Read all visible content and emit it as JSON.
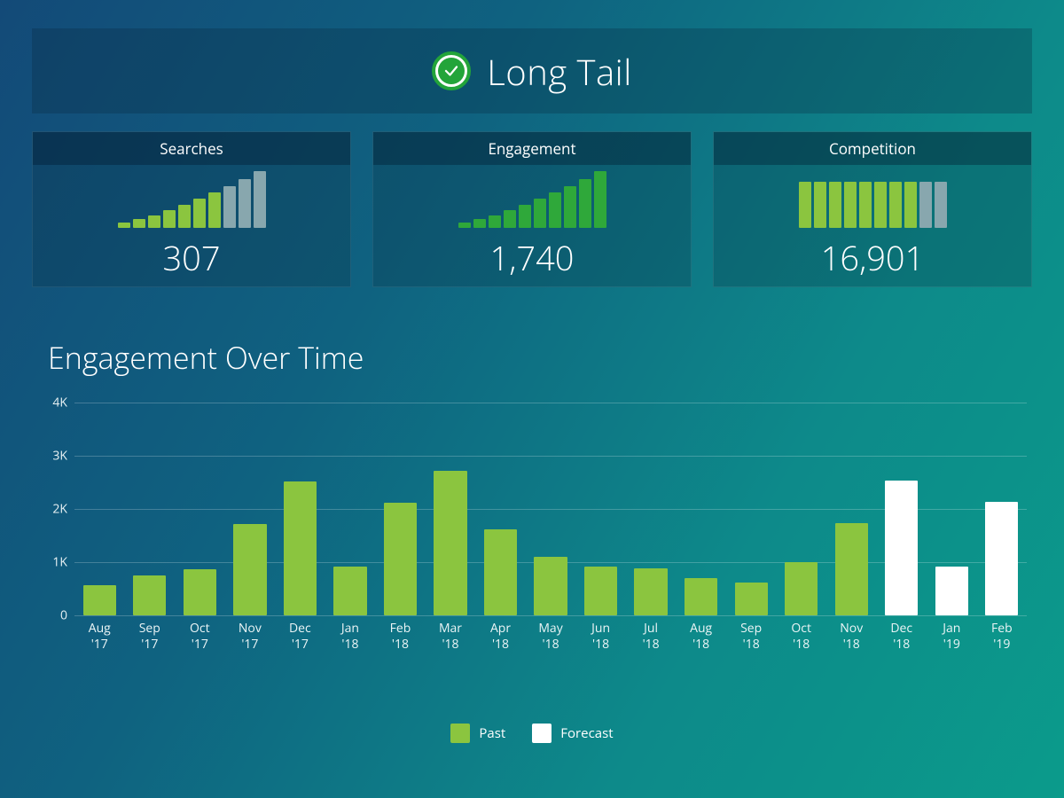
{
  "header": {
    "title": "Long Tail",
    "icon_ring_color": "#23a43a",
    "icon_background": "#ffffff",
    "icon_check_fill": "#23a43a",
    "icon_check_stroke": "#ffffff"
  },
  "cards": {
    "searches": {
      "title": "Searches",
      "value": "307",
      "bars": {
        "heights": [
          6,
          10,
          14,
          20,
          26,
          33,
          40,
          47,
          55,
          64
        ],
        "colors": [
          "#8bc53f",
          "#8bc53f",
          "#8bc53f",
          "#8bc53f",
          "#8bc53f",
          "#8bc53f",
          "#8bc53f",
          "#88a7ae",
          "#88a7ae",
          "#88a7ae"
        ]
      }
    },
    "engagement": {
      "title": "Engagement",
      "value": "1,740",
      "bars": {
        "heights": [
          6,
          10,
          14,
          20,
          26,
          33,
          40,
          47,
          55,
          64
        ],
        "colors": [
          "#2fa83a",
          "#2fa83a",
          "#2fa83a",
          "#2fa83a",
          "#2fa83a",
          "#2fa83a",
          "#2fa83a",
          "#2fa83a",
          "#2fa83a",
          "#2fa83a"
        ]
      }
    },
    "competition": {
      "title": "Competition",
      "value": "16,901",
      "bars": {
        "heights": [
          52,
          52,
          52,
          52,
          52,
          52,
          52,
          52,
          52,
          52
        ],
        "colors": [
          "#8bc53f",
          "#8bc53f",
          "#8bc53f",
          "#8bc53f",
          "#8bc53f",
          "#8bc53f",
          "#8bc53f",
          "#8bc53f",
          "#88a7ae",
          "#88a7ae"
        ]
      }
    }
  },
  "chart": {
    "title": "Engagement Over Time",
    "type": "bar",
    "ylim": [
      0,
      4000
    ],
    "yticks": [
      {
        "v": 0,
        "label": "0"
      },
      {
        "v": 1000,
        "label": "1K"
      },
      {
        "v": 2000,
        "label": "2K"
      },
      {
        "v": 3000,
        "label": "3K"
      },
      {
        "v": 4000,
        "label": "4K"
      }
    ],
    "grid_color": "rgba(255,255,255,0.22)",
    "past_color": "#8bc53f",
    "forecast_color": "#ffffff",
    "bars": [
      {
        "label_a": "Aug",
        "label_b": "'17",
        "value": 560,
        "kind": "past"
      },
      {
        "label_a": "Sep",
        "label_b": "'17",
        "value": 750,
        "kind": "past"
      },
      {
        "label_a": "Oct",
        "label_b": "'17",
        "value": 860,
        "kind": "past"
      },
      {
        "label_a": "Nov",
        "label_b": "'17",
        "value": 1720,
        "kind": "past"
      },
      {
        "label_a": "Dec",
        "label_b": "'17",
        "value": 2520,
        "kind": "past"
      },
      {
        "label_a": "Jan",
        "label_b": "'18",
        "value": 920,
        "kind": "past"
      },
      {
        "label_a": "Feb",
        "label_b": "'18",
        "value": 2120,
        "kind": "past"
      },
      {
        "label_a": "Mar",
        "label_b": "'18",
        "value": 2720,
        "kind": "past"
      },
      {
        "label_a": "Apr",
        "label_b": "'18",
        "value": 1620,
        "kind": "past"
      },
      {
        "label_a": "May",
        "label_b": "'18",
        "value": 1100,
        "kind": "past"
      },
      {
        "label_a": "Jun",
        "label_b": "'18",
        "value": 920,
        "kind": "past"
      },
      {
        "label_a": "Jul",
        "label_b": "'18",
        "value": 880,
        "kind": "past"
      },
      {
        "label_a": "Aug",
        "label_b": "'18",
        "value": 700,
        "kind": "past"
      },
      {
        "label_a": "Sep",
        "label_b": "'18",
        "value": 620,
        "kind": "past"
      },
      {
        "label_a": "Oct",
        "label_b": "'18",
        "value": 1000,
        "kind": "past"
      },
      {
        "label_a": "Nov",
        "label_b": "'18",
        "value": 1740,
        "kind": "past"
      },
      {
        "label_a": "Dec",
        "label_b": "'18",
        "value": 2540,
        "kind": "forecast"
      },
      {
        "label_a": "Jan",
        "label_b": "'19",
        "value": 920,
        "kind": "forecast"
      },
      {
        "label_a": "Feb",
        "label_b": "'19",
        "value": 2140,
        "kind": "forecast"
      }
    ],
    "legend": {
      "past": "Past",
      "forecast": "Forecast"
    }
  }
}
